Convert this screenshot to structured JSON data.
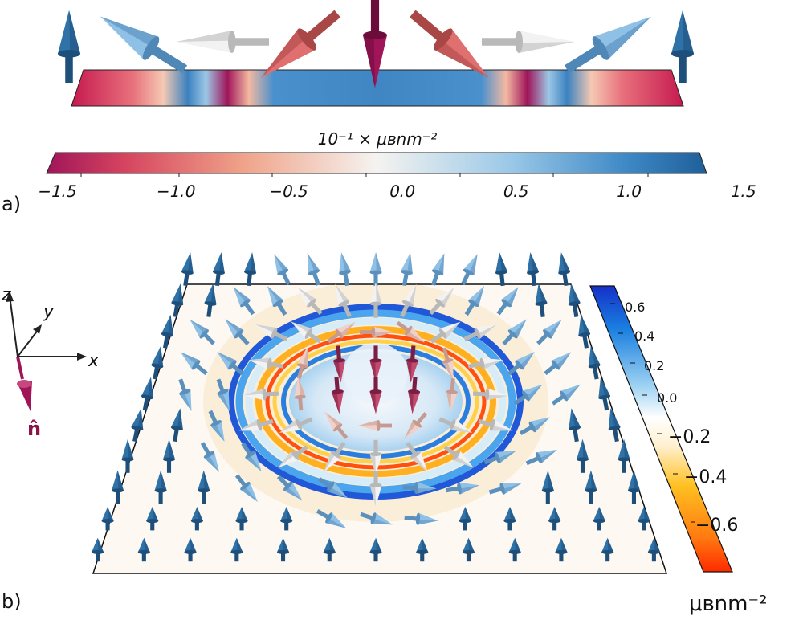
{
  "panel_a": {
    "label": "a)",
    "colorbar_title": "10⁻¹ × μʙnm⁻²",
    "colorbar_ticks": [
      "−1.5",
      "−1.0",
      "−0.5",
      "0.0",
      "0.5",
      "1.0",
      "1.5"
    ]
  },
  "panel_b": {
    "label": "b)",
    "axes": {
      "z": "z",
      "y": "y",
      "x": "x",
      "n": "n̂"
    },
    "colorbar_ticks": [
      "0.6",
      "0.4",
      "0.2",
      "0.0",
      "−0.2",
      "−0.4",
      "−0.6"
    ],
    "colorbar_unit": "μʙnm⁻²"
  },
  "colors": {
    "spin_up": "#2f72a8",
    "spin_light": "#8fc0e6",
    "spin_white": "#f2f2f2",
    "spin_pink": "#e07070",
    "spin_down": "#a0155a",
    "map_blue": "#2058d8",
    "map_orange": "#ff7a10"
  }
}
